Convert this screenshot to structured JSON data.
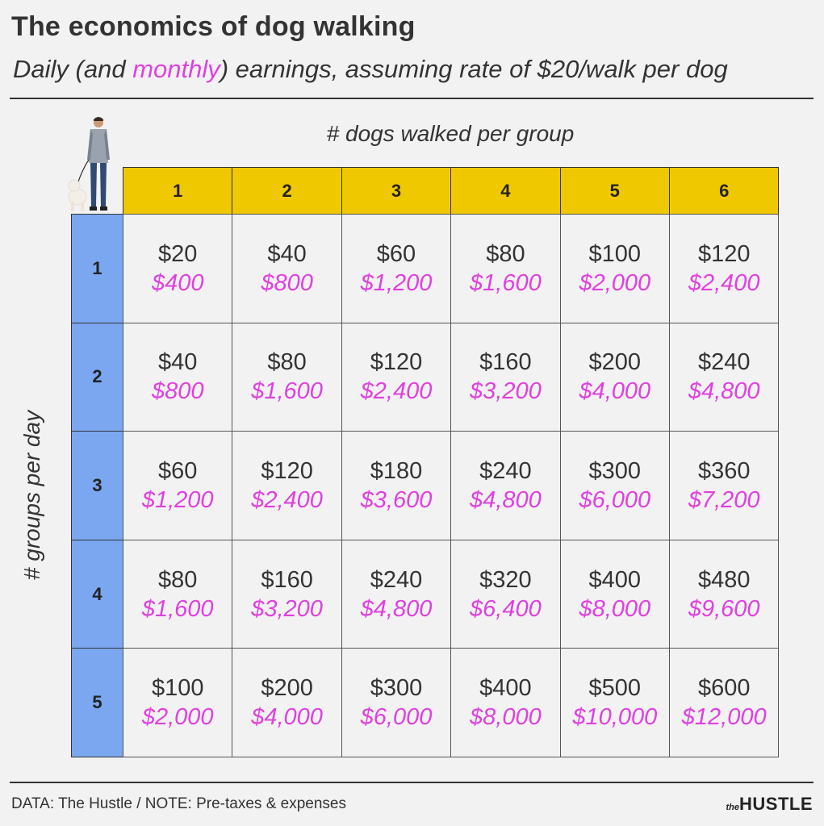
{
  "header": {
    "title": "The economics of dog walking",
    "subtitle_prefix": "Daily (and ",
    "subtitle_highlight": "monthly",
    "subtitle_suffix": ") earnings, assuming rate of $20/walk per dog"
  },
  "chart_data": {
    "type": "table",
    "title": "The economics of dog walking",
    "col_axis_label": "# dogs walked per group",
    "row_axis_label": "# groups per day",
    "columns": [
      "1",
      "2",
      "3",
      "4",
      "5",
      "6"
    ],
    "rows": [
      "1",
      "2",
      "3",
      "4",
      "5"
    ],
    "daily": [
      [
        "$20",
        "$40",
        "$60",
        "$80",
        "$100",
        "$120"
      ],
      [
        "$40",
        "$80",
        "$120",
        "$160",
        "$200",
        "$240"
      ],
      [
        "$60",
        "$120",
        "$180",
        "$240",
        "$300",
        "$360"
      ],
      [
        "$80",
        "$160",
        "$240",
        "$320",
        "$400",
        "$480"
      ],
      [
        "$100",
        "$200",
        "$300",
        "$400",
        "$500",
        "$600"
      ]
    ],
    "monthly": [
      [
        "$400",
        "$800",
        "$1,200",
        "$1,600",
        "$2,000",
        "$2,400"
      ],
      [
        "$800",
        "$1,600",
        "$2,400",
        "$3,200",
        "$4,000",
        "$4,800"
      ],
      [
        "$1,200",
        "$2,400",
        "$3,600",
        "$4,800",
        "$6,000",
        "$7,200"
      ],
      [
        "$1,600",
        "$3,200",
        "$4,800",
        "$6,400",
        "$8,000",
        "$9,600"
      ],
      [
        "$2,000",
        "$4,000",
        "$6,000",
        "$8,000",
        "$10,000",
        "$12,000"
      ]
    ],
    "colors": {
      "column_header": "#f0c800",
      "row_header": "#7aa7f0",
      "monthly_text": "#e040e0",
      "daily_text": "#333333"
    }
  },
  "footer": {
    "note": "DATA: The Hustle / NOTE: Pre-taxes & expenses",
    "brand_small": "the",
    "brand_large": "HUSTLE"
  }
}
